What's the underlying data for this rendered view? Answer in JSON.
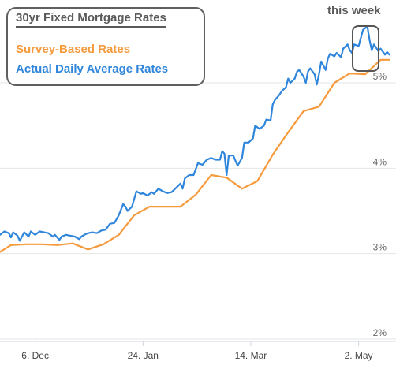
{
  "chart_data": {
    "type": "line",
    "title": "30yr Fixed Mortgage Rates",
    "xlabel": "",
    "ylabel": "",
    "ylim": [
      2,
      5.85
    ],
    "ytick_labels": [
      {
        "value": 2,
        "label": "2%"
      },
      {
        "value": 3,
        "label": "3%"
      },
      {
        "value": 4,
        "label": "4%"
      },
      {
        "value": 5,
        "label": "5%"
      }
    ],
    "xtick_labels": [
      {
        "day": 6,
        "label": "6. Dec"
      },
      {
        "day": 55,
        "label": "24. Jan"
      },
      {
        "day": 104,
        "label": "14. Mar"
      },
      {
        "day": 153,
        "label": "2. May"
      }
    ],
    "xlim": [
      -10,
      170
    ],
    "annotation": "this week",
    "grid": true,
    "series": [
      {
        "name": "Survey-Based Rates",
        "color": "#f59a3d",
        "points": [
          [
            -10,
            3.02
          ],
          [
            -5,
            3.1
          ],
          [
            2,
            3.11
          ],
          [
            9,
            3.11
          ],
          [
            16,
            3.1
          ],
          [
            23,
            3.12
          ],
          [
            30,
            3.05
          ],
          [
            37,
            3.11
          ],
          [
            44,
            3.22
          ],
          [
            51,
            3.45
          ],
          [
            58,
            3.55
          ],
          [
            65,
            3.55
          ],
          [
            72,
            3.55
          ],
          [
            79,
            3.69
          ],
          [
            86,
            3.92
          ],
          [
            93,
            3.89
          ],
          [
            100,
            3.76
          ],
          [
            107,
            3.85
          ],
          [
            114,
            4.16
          ],
          [
            121,
            4.42
          ],
          [
            128,
            4.67
          ],
          [
            135,
            4.72
          ],
          [
            142,
            5.0
          ],
          [
            149,
            5.11
          ],
          [
            156,
            5.1
          ],
          [
            163,
            5.27
          ],
          [
            167,
            5.27
          ]
        ]
      },
      {
        "name": "Actual Daily Average Rates",
        "color": "#2f86db",
        "points": [
          [
            -10,
            3.22
          ],
          [
            -8,
            3.26
          ],
          [
            -6,
            3.24
          ],
          [
            -5,
            3.19
          ],
          [
            -4,
            3.25
          ],
          [
            -2,
            3.21
          ],
          [
            -1,
            3.15
          ],
          [
            1,
            3.25
          ],
          [
            3,
            3.2
          ],
          [
            4,
            3.26
          ],
          [
            6,
            3.22
          ],
          [
            8,
            3.26
          ],
          [
            10,
            3.25
          ],
          [
            12,
            3.24
          ],
          [
            14,
            3.2
          ],
          [
            15,
            3.22
          ],
          [
            17,
            3.16
          ],
          [
            18,
            3.2
          ],
          [
            20,
            3.22
          ],
          [
            22,
            3.21
          ],
          [
            24,
            3.2
          ],
          [
            26,
            3.17
          ],
          [
            27,
            3.2
          ],
          [
            29,
            3.23
          ],
          [
            30,
            3.24
          ],
          [
            32,
            3.25
          ],
          [
            34,
            3.24
          ],
          [
            36,
            3.27
          ],
          [
            38,
            3.28
          ],
          [
            40,
            3.35
          ],
          [
            42,
            3.36
          ],
          [
            44,
            3.45
          ],
          [
            46,
            3.58
          ],
          [
            47,
            3.55
          ],
          [
            48,
            3.5
          ],
          [
            50,
            3.55
          ],
          [
            52,
            3.73
          ],
          [
            54,
            3.7
          ],
          [
            55,
            3.71
          ],
          [
            57,
            3.68
          ],
          [
            59,
            3.72
          ],
          [
            60,
            3.7
          ],
          [
            62,
            3.76
          ],
          [
            64,
            3.73
          ],
          [
            66,
            3.71
          ],
          [
            68,
            3.72
          ],
          [
            70,
            3.77
          ],
          [
            72,
            3.82
          ],
          [
            73,
            3.76
          ],
          [
            74,
            3.88
          ],
          [
            76,
            3.92
          ],
          [
            78,
            3.92
          ],
          [
            80,
            4.06
          ],
          [
            82,
            4.04
          ],
          [
            84,
            4.1
          ],
          [
            86,
            4.12
          ],
          [
            88,
            4.1
          ],
          [
            90,
            4.1
          ],
          [
            91,
            4.2
          ],
          [
            92,
            4.17
          ],
          [
            93,
            3.92
          ],
          [
            94,
            4.15
          ],
          [
            96,
            4.15
          ],
          [
            98,
            4.03
          ],
          [
            100,
            4.12
          ],
          [
            101,
            4.3
          ],
          [
            103,
            4.3
          ],
          [
            105,
            4.35
          ],
          [
            106,
            4.5
          ],
          [
            108,
            4.46
          ],
          [
            110,
            4.5
          ],
          [
            111,
            4.57
          ],
          [
            113,
            4.56
          ],
          [
            114,
            4.75
          ],
          [
            115,
            4.8
          ],
          [
            117,
            4.86
          ],
          [
            118,
            4.9
          ],
          [
            120,
            4.95
          ],
          [
            121,
            5.05
          ],
          [
            122,
            5.0
          ],
          [
            124,
            5.05
          ],
          [
            125,
            5.13
          ],
          [
            126,
            5.15
          ],
          [
            128,
            5.07
          ],
          [
            129,
            5.0
          ],
          [
            130,
            5.13
          ],
          [
            131,
            5.17
          ],
          [
            133,
            5.1
          ],
          [
            134,
            4.98
          ],
          [
            135,
            5.1
          ],
          [
            136,
            5.25
          ],
          [
            138,
            5.15
          ],
          [
            139,
            5.28
          ],
          [
            140,
            5.34
          ],
          [
            142,
            5.31
          ],
          [
            143,
            5.35
          ],
          [
            145,
            5.3
          ],
          [
            146,
            5.4
          ],
          [
            148,
            5.45
          ],
          [
            149,
            5.38
          ],
          [
            150,
            5.35
          ],
          [
            151,
            5.45
          ],
          [
            153,
            5.43
          ],
          [
            155,
            5.62
          ],
          [
            157,
            5.66
          ],
          [
            158,
            5.5
          ],
          [
            159,
            5.38
          ],
          [
            160,
            5.45
          ],
          [
            162,
            5.37
          ],
          [
            163,
            5.4
          ],
          [
            165,
            5.33
          ],
          [
            166,
            5.36
          ],
          [
            167,
            5.33
          ]
        ]
      }
    ]
  }
}
